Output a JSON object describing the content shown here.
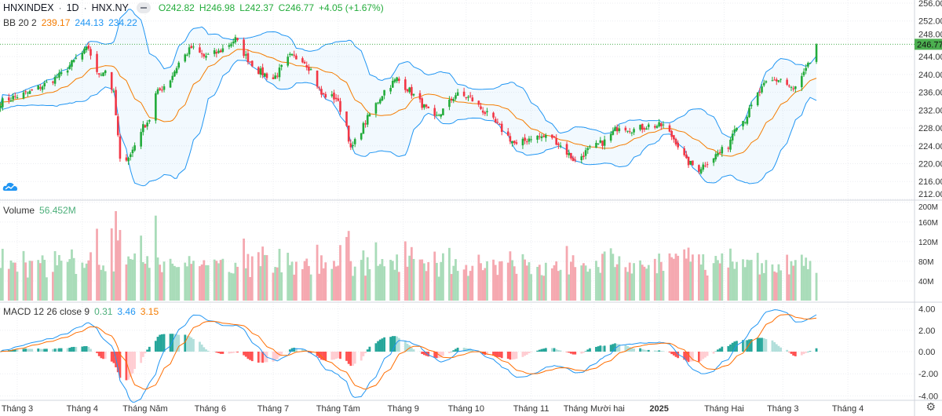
{
  "header": {
    "symbol": "HNXINDEX",
    "interval": "1D",
    "exchange": "HNX.NY",
    "open": "O242.82",
    "high": "H246.98",
    "low": "L242.37",
    "close": "C246.77",
    "change": "+4.05 (+1.67%)"
  },
  "bb_legend": {
    "name": "BB 20 2",
    "basis": "239.17",
    "upper": "244.13",
    "lower": "234.22"
  },
  "volume_legend": {
    "name": "Volume",
    "value": "56.452M"
  },
  "macd_legend": {
    "name": "MACD 12 26 close 9",
    "hist": "0.31",
    "macd": "3.46",
    "signal": "3.15"
  },
  "last_price_label": "246.77",
  "colors": {
    "up": "#22ab3a",
    "down": "#f23645",
    "bb_band": "#2196f3",
    "bb_basis": "#f57c00",
    "macd_line": "#2196f3",
    "signal_line": "#ff6d00",
    "last_price": "#4caf50"
  },
  "icons": {
    "logo": "tradingview-cloud-icon",
    "settings": "gear-icon",
    "collapse": "minus-icon"
  },
  "chart_data": {
    "type": "candlestick",
    "indicators": [
      "Bollinger Bands (20, 2)",
      "Volume",
      "MACD (12, 26, close, 9)"
    ],
    "price_axis": {
      "ticks": [
        "256.00",
        "252.00",
        "248.00",
        "244.00",
        "240.00",
        "236.00",
        "232.00",
        "228.00",
        "224.00",
        "220.00",
        "216.00",
        "212.00"
      ],
      "range": [
        212,
        256
      ]
    },
    "volume_axis": {
      "ticks": [
        "200M",
        "160M",
        "120M",
        "80M",
        "40M"
      ],
      "range": [
        0,
        200
      ]
    },
    "macd_axis": {
      "ticks": [
        "4.00",
        "2.00",
        "0.00",
        "-2.00",
        "-4.00"
      ],
      "range": [
        -5,
        4.5
      ]
    },
    "time_axis": [
      {
        "date": "2024-03-01",
        "label": "Tháng 3"
      },
      {
        "date": "2024-04-01",
        "label": "Tháng 4"
      },
      {
        "date": "2024-05-01",
        "label": "Tháng Năm"
      },
      {
        "date": "2024-06-01",
        "label": "Tháng 6"
      },
      {
        "date": "2024-07-01",
        "label": "Tháng 7"
      },
      {
        "date": "2024-08-01",
        "label": "Tháng Tám"
      },
      {
        "date": "2024-09-01",
        "label": "Tháng 9"
      },
      {
        "date": "2024-10-01",
        "label": "Tháng 10"
      },
      {
        "date": "2024-11-01",
        "label": "Tháng 11"
      },
      {
        "date": "2024-12-01",
        "label": "Tháng Mười hai"
      },
      {
        "date": "2025-01-01",
        "label": "2025"
      },
      {
        "date": "2025-02-01",
        "label": "Tháng Hai"
      },
      {
        "date": "2025-03-01",
        "label": "Tháng 3"
      },
      {
        "date": "2025-04-01",
        "label": "Tháng 4"
      }
    ],
    "close_path": [
      [
        "2024-02-22",
        233.8
      ],
      [
        "2024-02-29",
        235.0
      ],
      [
        "2024-03-07",
        236.0
      ],
      [
        "2024-03-15",
        238.0
      ],
      [
        "2024-03-22",
        240.0
      ],
      [
        "2024-03-29",
        243.5
      ],
      [
        "2024-04-04",
        246.0
      ],
      [
        "2024-04-08",
        240.0
      ],
      [
        "2024-04-12",
        241.0
      ],
      [
        "2024-04-16",
        235.5
      ],
      [
        "2024-04-18",
        226.0
      ],
      [
        "2024-04-19",
        220.5
      ],
      [
        "2024-04-24",
        222.0
      ],
      [
        "2024-04-29",
        227.6
      ],
      [
        "2024-05-03",
        230.0
      ],
      [
        "2024-05-06",
        235.5
      ],
      [
        "2024-05-13",
        239.0
      ],
      [
        "2024-05-17",
        242.6
      ],
      [
        "2024-05-23",
        246.0
      ],
      [
        "2024-05-29",
        244.0
      ],
      [
        "2024-06-05",
        245.0
      ],
      [
        "2024-06-13",
        247.9
      ],
      [
        "2024-06-18",
        244.0
      ],
      [
        "2024-06-24",
        240.8
      ],
      [
        "2024-07-01",
        239.0
      ],
      [
        "2024-07-09",
        244.0
      ],
      [
        "2024-07-15",
        243.5
      ],
      [
        "2024-07-19",
        241.0
      ],
      [
        "2024-07-24",
        235.5
      ],
      [
        "2024-07-31",
        234.7
      ],
      [
        "2024-08-05",
        228.5
      ],
      [
        "2024-08-07",
        223.0
      ],
      [
        "2024-08-12",
        227.6
      ],
      [
        "2024-08-16",
        231.0
      ],
      [
        "2024-08-23",
        236.4
      ],
      [
        "2024-08-29",
        239.0
      ],
      [
        "2024-09-04",
        236.4
      ],
      [
        "2024-09-09",
        233.8
      ],
      [
        "2024-09-16",
        230.0
      ],
      [
        "2024-09-20",
        232.0
      ],
      [
        "2024-09-26",
        235.5
      ],
      [
        "2024-10-03",
        234.7
      ],
      [
        "2024-10-11",
        231.0
      ],
      [
        "2024-10-18",
        227.6
      ],
      [
        "2024-10-25",
        224.0
      ],
      [
        "2024-11-01",
        226.0
      ],
      [
        "2024-11-11",
        226.0
      ],
      [
        "2024-11-15",
        224.0
      ],
      [
        "2024-11-22",
        220.5
      ],
      [
        "2024-11-28",
        223.0
      ],
      [
        "2024-12-06",
        225.0
      ],
      [
        "2024-12-13",
        228.5
      ],
      [
        "2024-12-20",
        227.6
      ],
      [
        "2024-12-27",
        228.5
      ],
      [
        "2025-01-03",
        228.5
      ],
      [
        "2025-01-09",
        225.0
      ],
      [
        "2025-01-14",
        220.5
      ],
      [
        "2025-01-20",
        218.8
      ],
      [
        "2025-01-24",
        220.5
      ],
      [
        "2025-02-03",
        224.0
      ],
      [
        "2025-02-06",
        228.5
      ],
      [
        "2025-02-11",
        230.0
      ],
      [
        "2025-02-17",
        235.5
      ],
      [
        "2025-02-21",
        238.0
      ],
      [
        "2025-02-28",
        239.0
      ],
      [
        "2025-03-06",
        236.4
      ],
      [
        "2025-03-11",
        240.0
      ],
      [
        "2025-03-14",
        242.72
      ],
      [
        "2025-03-17",
        246.77
      ]
    ],
    "last_bar": {
      "open": 242.82,
      "high": 246.98,
      "low": 242.37,
      "close": 246.77,
      "volume": "56.452M"
    }
  }
}
